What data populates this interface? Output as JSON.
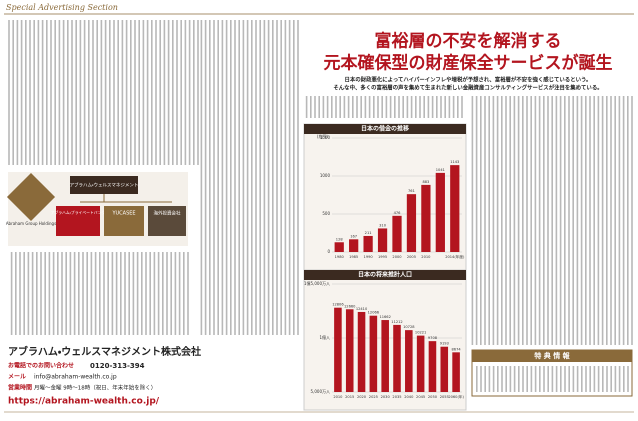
{
  "header": {
    "section": "Special Advertising Section",
    "title_line1": "富裕層の不安を解消する",
    "title_line2": "元本確保型の財産保全サービスが誕生",
    "lead_line1": "日本の財政悪化によってハイパーインフレや増税が予想され、富裕層が不安を強く感じているという。",
    "lead_line2": "そんな中、多くの富裕層の声を集めて生まれた新しい金融資産コンサルティングサービスが注目を集めている。"
  },
  "debt_chart": {
    "type": "bar",
    "title": "日本の借金の推移",
    "unit": "(兆円)",
    "categories": [
      "1980",
      "1985",
      "1990",
      "1995",
      "2000",
      "2005",
      "2010",
      null,
      "2014(年度)"
    ],
    "values": [
      128,
      167,
      211,
      310,
      476,
      761,
      883,
      1041,
      1143
    ],
    "color": "#b3151f",
    "ylim": [
      0,
      1500
    ],
    "yticks": [
      0,
      500,
      1000,
      1500
    ]
  },
  "population_chart": {
    "type": "bar",
    "title": "日本の将来推計人口",
    "categories": [
      "2010",
      "2015",
      "2020",
      "2025",
      "2030",
      "2035",
      "2040",
      "2045",
      "2050",
      "2055",
      "2060(年)"
    ],
    "values": [
      12806,
      12660,
      12410,
      12066,
      11662,
      11212,
      10728,
      10221,
      9708,
      9193,
      8674
    ],
    "color": "#b3151f",
    "ylim": [
      5000,
      15000
    ],
    "yticks": [
      {
        "value": 5000,
        "label": "5,000万人"
      },
      {
        "value": 10000,
        "label": "1億人"
      },
      {
        "value": 15000,
        "label": "1億5,000万人"
      }
    ]
  },
  "group": {
    "holding": "Abraham Group Holdings",
    "wealth": "アブラハム・ウェルスマネジメント",
    "bank": "アブラハム・プライベートバンク",
    "yucasee": "YUCASEE",
    "overseas": "海外投資会社"
  },
  "contact": {
    "company": "アブラハム・ウェルスマネジメント株式会社",
    "phone_label": "お電話でのお問い合わせ",
    "phone": "0120-313-394",
    "mail_label": "メール",
    "mail": "info@abraham-wealth.co.jp",
    "hours_label": "営業時間",
    "hours": "月曜～金曜 9時～18時（祝日、年末年始を除く）",
    "url": "https://abraham-wealth.co.jp/"
  },
  "benefit": {
    "title": "特 典 情 報"
  }
}
